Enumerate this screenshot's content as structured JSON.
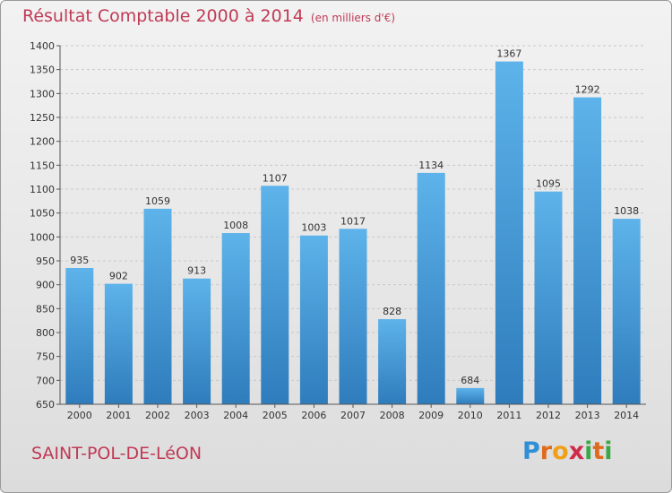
{
  "header": {
    "title": "Résultat Comptable 2000 à 2014",
    "subtitle": "(en milliers d'€)"
  },
  "footer": {
    "commune": "SAINT-POL-DE-LéON",
    "brand": {
      "letters": [
        "P",
        "r",
        "o",
        "x",
        "i",
        "t",
        "i"
      ],
      "colors": [
        "#2e8fd6",
        "#e06a1c",
        "#f0a018",
        "#d02a4a",
        "#3aa845",
        "#e06a1c",
        "#3aa845"
      ]
    }
  },
  "colors": {
    "bar_light": "#5db3ea",
    "bar_dark": "#2f7cbc",
    "grid": "#c8c8c8",
    "axis": "#555555"
  },
  "chart_data": {
    "type": "bar",
    "categories": [
      "2000",
      "2001",
      "2002",
      "2003",
      "2004",
      "2005",
      "2006",
      "2007",
      "2008",
      "2009",
      "2010",
      "2011",
      "2012",
      "2013",
      "2014"
    ],
    "values": [
      935,
      902,
      1059,
      913,
      1008,
      1107,
      1003,
      1017,
      828,
      1134,
      684,
      1367,
      1095,
      1292,
      1038
    ],
    "title": "Résultat Comptable 2000 à 2014",
    "xlabel": "",
    "ylabel": "",
    "ylim": [
      650,
      1400
    ],
    "yticks": [
      650,
      700,
      750,
      800,
      850,
      900,
      950,
      1000,
      1050,
      1100,
      1150,
      1200,
      1250,
      1300,
      1350,
      1400
    ],
    "grid": true
  }
}
